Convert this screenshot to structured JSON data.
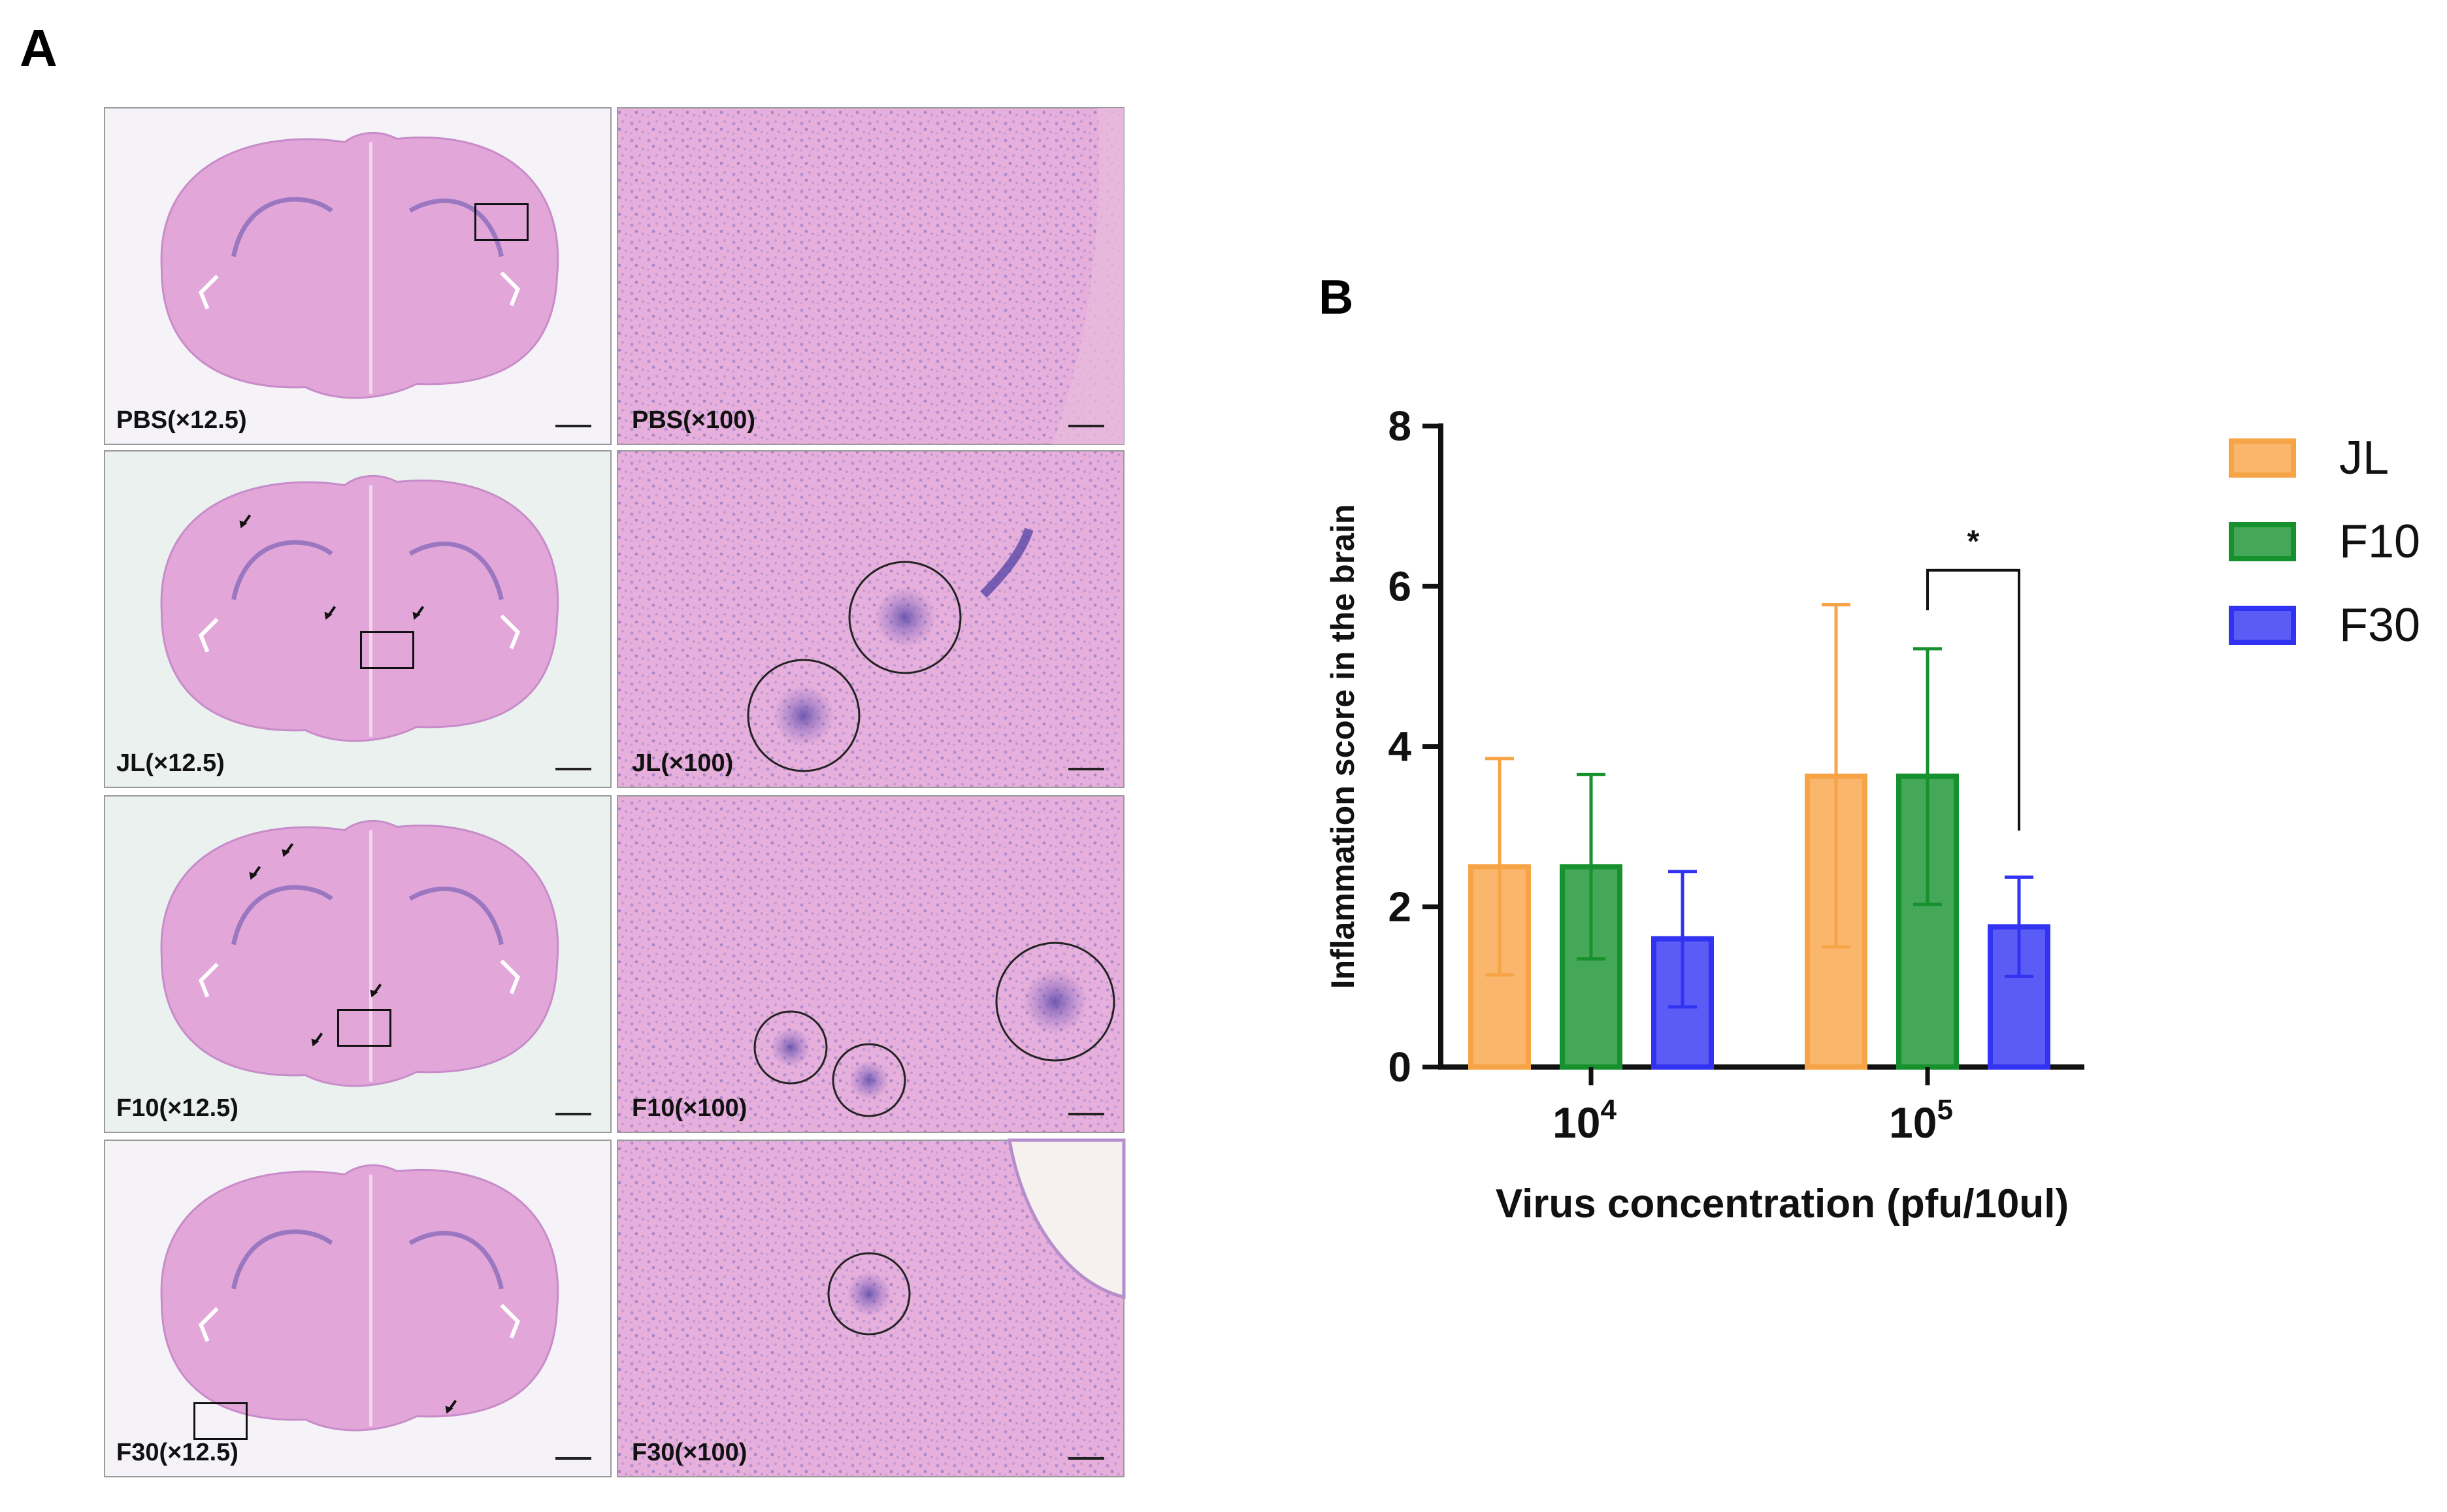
{
  "panels": {
    "a": "A",
    "b": "B"
  },
  "histology": {
    "rows": [
      {
        "group": "PBS",
        "low_label": "PBS(×12.5)",
        "high_label": "PBS(×100)"
      },
      {
        "group": "JL",
        "low_label": "JL(×12.5)",
        "high_label": "JL(×100)"
      },
      {
        "group": "F10",
        "low_label": "F10(×12.5)",
        "high_label": "F10(×100)"
      },
      {
        "group": "F30",
        "low_label": "F30(×12.5)",
        "high_label": "F30(×100)"
      }
    ],
    "colors": {
      "tissue": "#e2a7d8",
      "tissue_dark": "#c78cc9",
      "stain": "#7d63b8",
      "background": "#f4f2f6"
    }
  },
  "chart_data": {
    "type": "bar",
    "categories": [
      "10^4",
      "10^5"
    ],
    "category_labels": [
      {
        "base": "10",
        "exp": "4"
      },
      {
        "base": "10",
        "exp": "5"
      }
    ],
    "series": [
      {
        "name": "JL",
        "color": "#f7a447",
        "values": [
          2.5,
          3.63
        ],
        "error_upper": [
          3.85,
          5.77
        ],
        "error_lower": [
          1.15,
          1.5
        ]
      },
      {
        "name": "F10",
        "color": "#16912e",
        "values": [
          2.5,
          3.63
        ],
        "error_upper": [
          3.65,
          5.22
        ],
        "error_lower": [
          1.35,
          2.03
        ]
      },
      {
        "name": "F30",
        "color": "#3232f2",
        "values": [
          1.6,
          1.75
        ],
        "error_upper": [
          2.44,
          2.37
        ],
        "error_lower": [
          0.75,
          1.13
        ]
      }
    ],
    "xlabel": "Virus concentration (pfu/10ul)",
    "ylabel": "Inflammation score in the brain",
    "ylim": [
      0,
      8
    ],
    "yticks": [
      0,
      2,
      4,
      6,
      8
    ],
    "significance": {
      "category": "10^5",
      "from": "F10",
      "to": "F30",
      "label": "*"
    },
    "legend_position": "right",
    "grid": false
  }
}
